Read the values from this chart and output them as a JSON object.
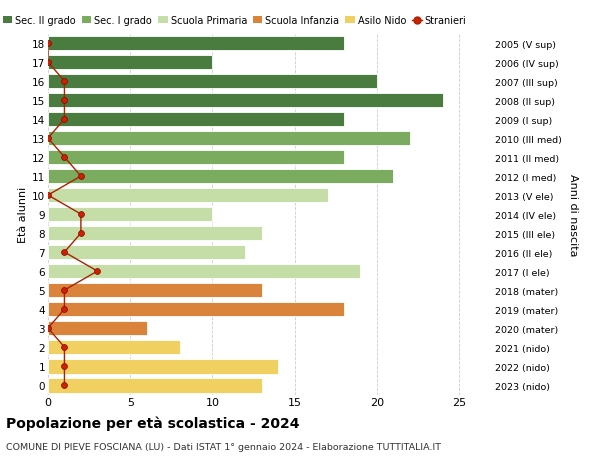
{
  "ages": [
    18,
    17,
    16,
    15,
    14,
    13,
    12,
    11,
    10,
    9,
    8,
    7,
    6,
    5,
    4,
    3,
    2,
    1,
    0
  ],
  "right_labels": [
    "2005 (V sup)",
    "2006 (IV sup)",
    "2007 (III sup)",
    "2008 (II sup)",
    "2009 (I sup)",
    "2010 (III med)",
    "2011 (II med)",
    "2012 (I med)",
    "2013 (V ele)",
    "2014 (IV ele)",
    "2015 (III ele)",
    "2016 (II ele)",
    "2017 (I ele)",
    "2018 (mater)",
    "2019 (mater)",
    "2020 (mater)",
    "2021 (nido)",
    "2022 (nido)",
    "2023 (nido)"
  ],
  "bar_values": [
    18,
    10,
    20,
    24,
    18,
    22,
    18,
    21,
    17,
    10,
    13,
    12,
    19,
    13,
    18,
    6,
    8,
    14,
    13
  ],
  "bar_colors": [
    "#4a7c3f",
    "#4a7c3f",
    "#4a7c3f",
    "#4a7c3f",
    "#4a7c3f",
    "#7aab5e",
    "#7aab5e",
    "#7aab5e",
    "#c5dea8",
    "#c5dea8",
    "#c5dea8",
    "#c5dea8",
    "#c5dea8",
    "#d9843a",
    "#d9843a",
    "#d9843a",
    "#f0d060",
    "#f0d060",
    "#f0d060"
  ],
  "stranieri_values": [
    0,
    0,
    1,
    1,
    1,
    0,
    1,
    2,
    0,
    2,
    2,
    1,
    3,
    1,
    1,
    0,
    1,
    1,
    1
  ],
  "legend_labels": [
    "Sec. II grado",
    "Sec. I grado",
    "Scuola Primaria",
    "Scuola Infanzia",
    "Asilo Nido",
    "Stranieri"
  ],
  "legend_colors": [
    "#4a7c3f",
    "#7aab5e",
    "#c5dea8",
    "#d9843a",
    "#f0d060",
    "#cc2200"
  ],
  "title": "Popolazione per età scolastica - 2024",
  "subtitle": "COMUNE DI PIEVE FOSCIANA (LU) - Dati ISTAT 1° gennaio 2024 - Elaborazione TUTTITALIA.IT",
  "ylabel_left": "Età alunni",
  "ylabel_right": "Anni di nascita",
  "xlim": [
    0,
    27
  ],
  "background_color": "#ffffff",
  "grid_color": "#cccccc",
  "bar_height": 0.78
}
